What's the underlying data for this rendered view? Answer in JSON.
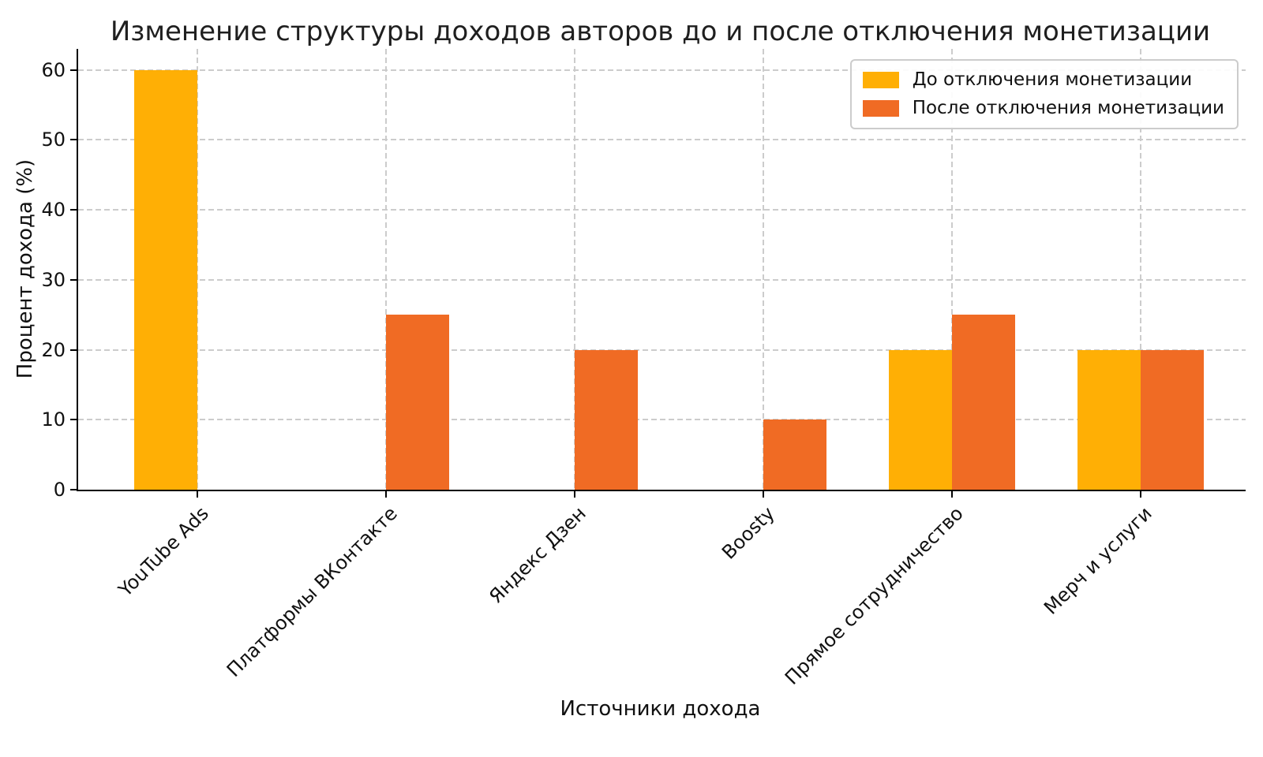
{
  "chart_data": {
    "type": "bar",
    "title": "Изменение структуры доходов авторов до и после отключения монетизации",
    "xlabel": "Источники дохода",
    "ylabel": "Процент дохода (%)",
    "categories": [
      "YouTube Ads",
      "Платформы ВКонтакте",
      "Яндекс Дзен",
      "Boosty",
      "Прямое сотрудничество",
      "Мерч и услуги"
    ],
    "series": [
      {
        "key": "before",
        "name": "До отключения монетизации",
        "color": "#FFAF05",
        "values": [
          60,
          0,
          0,
          0,
          20,
          20
        ]
      },
      {
        "key": "after",
        "name": "После отключения монетизации",
        "color": "#F06B24",
        "values": [
          0,
          25,
          20,
          10,
          25,
          20
        ]
      }
    ],
    "yticks": [
      0,
      10,
      20,
      30,
      40,
      50,
      60
    ],
    "ylim": [
      0,
      63
    ],
    "grid": true,
    "grid_color": "#cccccc",
    "background": "#ffffff",
    "legend_position": "upper right"
  }
}
